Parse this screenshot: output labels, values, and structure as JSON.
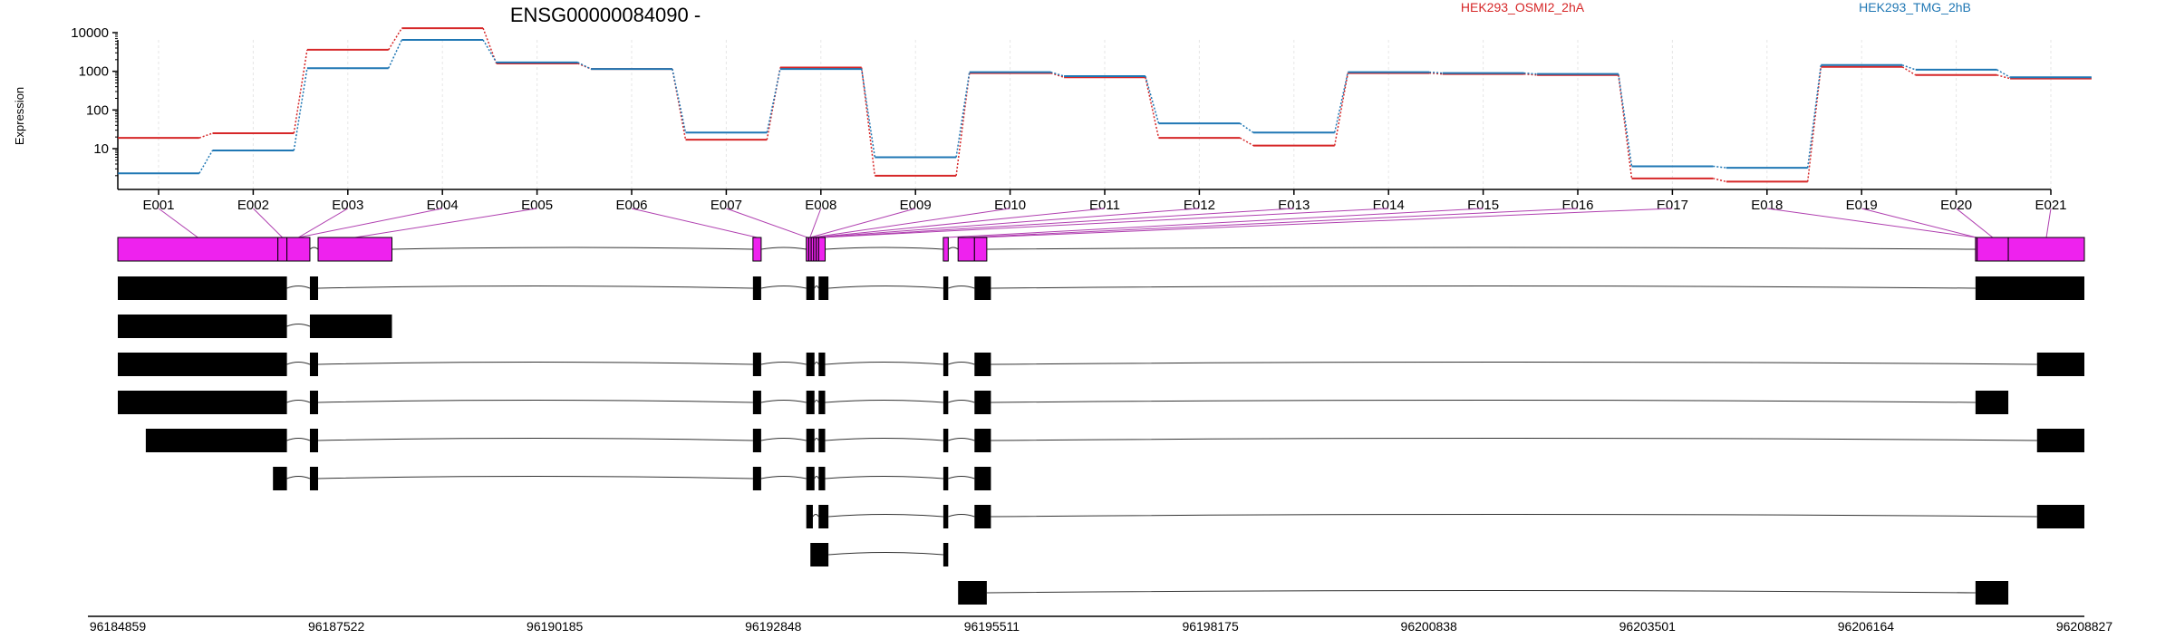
{
  "chart_data": [
    {
      "type": "line",
      "title": "ENSG00000084090 -",
      "ylabel": "Expression",
      "yscale": "log",
      "ylim": [
        1,
        14000
      ],
      "ytick_labels": [
        "10000",
        "1000",
        "100",
        "10"
      ],
      "ytick_values": [
        10000,
        1000,
        100,
        10
      ],
      "grid": "vertical",
      "legend_placement": "top-right",
      "categories": [
        "E001",
        "E002",
        "E003",
        "E004",
        "E005",
        "E006",
        "E007",
        "E008",
        "E009",
        "E010",
        "E011",
        "E012",
        "E013",
        "E014",
        "E015",
        "E016",
        "E017",
        "E018",
        "E019",
        "E020",
        "E021"
      ],
      "series": [
        {
          "name": "HEK293_OSMI2_2hA",
          "color": "#d62728",
          "values": [
            19,
            25,
            3600,
            13000,
            1600,
            1150,
            17,
            1250,
            2,
            900,
            700,
            19,
            12,
            900,
            850,
            800,
            1.7,
            1.4,
            1300,
            800,
            650
          ]
        },
        {
          "name": "HEK293_TMG_2hB",
          "color": "#1f77b4",
          "values": [
            2.3,
            9,
            1200,
            6500,
            1700,
            1150,
            26,
            1150,
            6,
            950,
            750,
            45,
            26,
            950,
            900,
            850,
            3.5,
            3.2,
            1450,
            1100,
            700
          ]
        }
      ]
    },
    {
      "type": "gene-structure",
      "x_tick_labels": [
        "96184859",
        "96187522",
        "96190185",
        "96192848",
        "96195511",
        "96198175",
        "96200838",
        "96203501",
        "96206164",
        "96208827"
      ],
      "x_tick_values": [
        96184859,
        96187522,
        96190185,
        96192848,
        96195511,
        96198175,
        96200838,
        96203501,
        96206164,
        96208827
      ],
      "xlim": [
        96184859,
        96208827
      ],
      "gene_color": "#ee22ee",
      "exon_bins": [
        [
          96184859,
          96186810
        ],
        [
          96186810,
          96186920
        ],
        [
          96186920,
          96187200
        ],
        [
          96187300,
          96188200
        ],
        [
          96192600,
          96192700
        ],
        [
          96193250,
          96193280
        ],
        [
          96193280,
          96193310
        ],
        [
          96193310,
          96193340
        ],
        [
          96193340,
          96193370
        ],
        [
          96193370,
          96193400
        ],
        [
          96193400,
          96193480
        ],
        [
          96194920,
          96194980
        ],
        [
          96195100,
          96195300
        ],
        [
          96195300,
          96195450
        ],
        [
          96207500,
          96207520
        ],
        [
          96207520,
          96207900
        ],
        [
          96207900,
          96208827
        ]
      ],
      "transcripts": [
        [
          [
            96184859,
            96186920
          ],
          [
            96187200,
            96187300
          ],
          [
            96192600,
            96192700
          ],
          [
            96193250,
            96193350
          ],
          [
            96193400,
            96193520
          ],
          [
            96194920,
            96194980
          ],
          [
            96195300,
            96195500
          ],
          [
            96207500,
            96208827
          ]
        ],
        [
          [
            96184859,
            96186920
          ],
          [
            96187200,
            96188200
          ]
        ],
        [
          [
            96184859,
            96186920
          ],
          [
            96187200,
            96187300
          ],
          [
            96192600,
            96192700
          ],
          [
            96193250,
            96193350
          ],
          [
            96193400,
            96193480
          ],
          [
            96194920,
            96194980
          ],
          [
            96195300,
            96195500
          ],
          [
            96208250,
            96208827
          ]
        ],
        [
          [
            96184859,
            96186920
          ],
          [
            96187200,
            96187300
          ],
          [
            96192600,
            96192700
          ],
          [
            96193250,
            96193350
          ],
          [
            96193400,
            96193480
          ],
          [
            96194920,
            96194980
          ],
          [
            96195300,
            96195500
          ],
          [
            96207500,
            96207900
          ]
        ],
        [
          [
            96185200,
            96186920
          ],
          [
            96187200,
            96187300
          ],
          [
            96192600,
            96192700
          ],
          [
            96193250,
            96193350
          ],
          [
            96193400,
            96193480
          ],
          [
            96194920,
            96194980
          ],
          [
            96195300,
            96195500
          ],
          [
            96208250,
            96208827
          ]
        ],
        [
          [
            96186750,
            96186920
          ],
          [
            96187200,
            96187300
          ],
          [
            96192600,
            96192700
          ],
          [
            96193250,
            96193350
          ],
          [
            96193400,
            96193480
          ],
          [
            96194920,
            96194980
          ],
          [
            96195300,
            96195500
          ]
        ],
        [
          [
            96193250,
            96193330
          ],
          [
            96193400,
            96193520
          ],
          [
            96194920,
            96194980
          ],
          [
            96195300,
            96195500
          ],
          [
            96208250,
            96208827
          ]
        ],
        [
          [
            96193300,
            96193520
          ],
          [
            96194920,
            96194980
          ]
        ],
        [
          [
            96195100,
            96195450
          ],
          [
            96207500,
            96207900
          ]
        ]
      ]
    }
  ]
}
